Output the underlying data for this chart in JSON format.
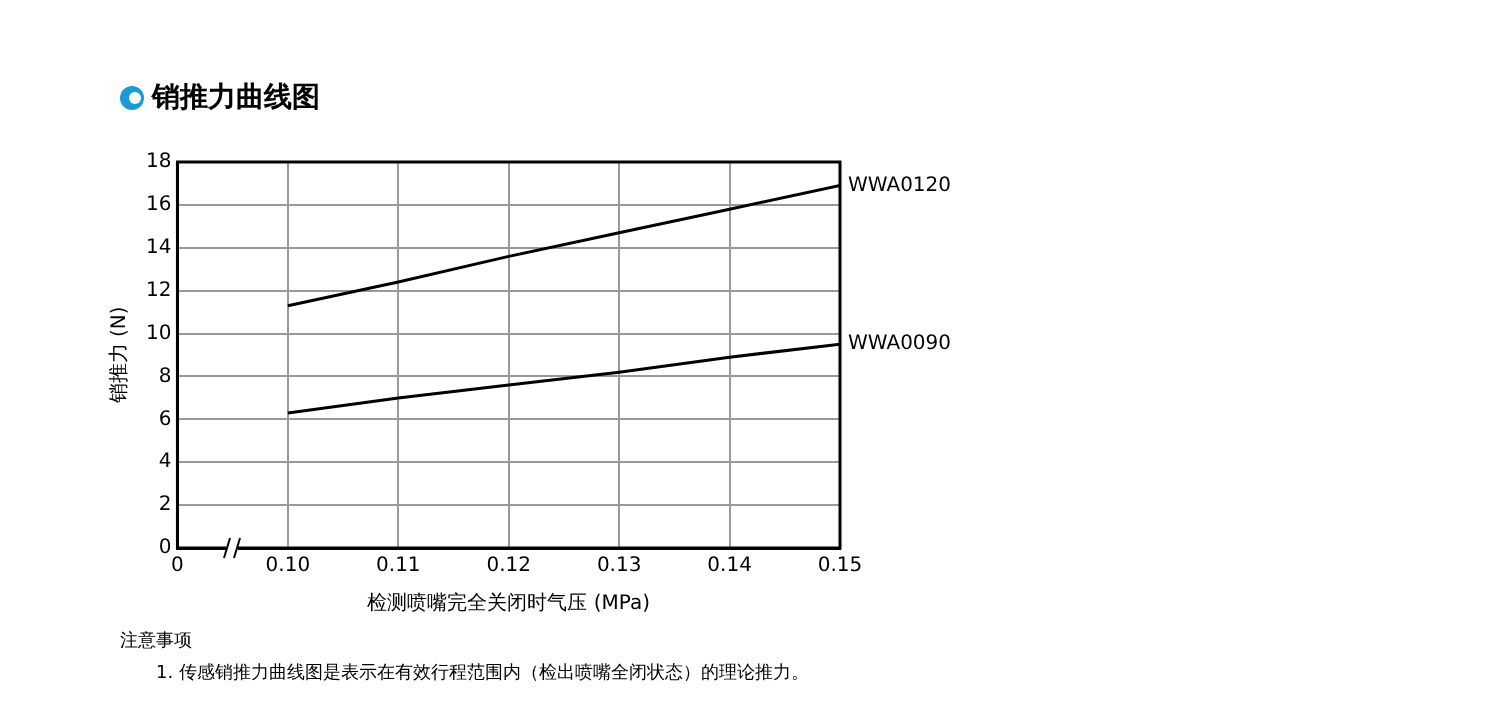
{
  "chart_data": {
    "type": "line",
    "title": "销推力曲线图",
    "xlabel": "检测喷嘴完全关闭时气压 (MPa)",
    "ylabel": "销推力 (N)",
    "x": [
      0.1,
      0.11,
      0.12,
      0.13,
      0.14,
      0.15
    ],
    "series": [
      {
        "name": "WWA0120",
        "color": "#000000",
        "values": [
          11.3,
          12.4,
          13.6,
          14.7,
          15.8,
          16.9
        ]
      },
      {
        "name": "WWA0090",
        "color": "#000000",
        "values": [
          6.3,
          7.0,
          7.6,
          8.2,
          8.9,
          9.5
        ]
      }
    ],
    "xlim": [
      0.09,
      0.15
    ],
    "xticks": [
      {
        "value": 0.09,
        "label": "0"
      },
      {
        "value": 0.1,
        "label": "0.10"
      },
      {
        "value": 0.11,
        "label": "0.11"
      },
      {
        "value": 0.12,
        "label": "0.12"
      },
      {
        "value": 0.13,
        "label": "0.13"
      },
      {
        "value": 0.14,
        "label": "0.14"
      },
      {
        "value": 0.15,
        "label": "0.15"
      }
    ],
    "ylim": [
      0,
      18
    ],
    "yticks": [
      0,
      2,
      4,
      6,
      8,
      10,
      12,
      14,
      16,
      18
    ],
    "grid": true,
    "marker": "none",
    "line_style": "solid",
    "annotations": [
      "注意事项",
      "1. 传感销推力曲线图是表示在有效行程范围内（检出喷嘴全闭状态）的理论推力。"
    ]
  }
}
